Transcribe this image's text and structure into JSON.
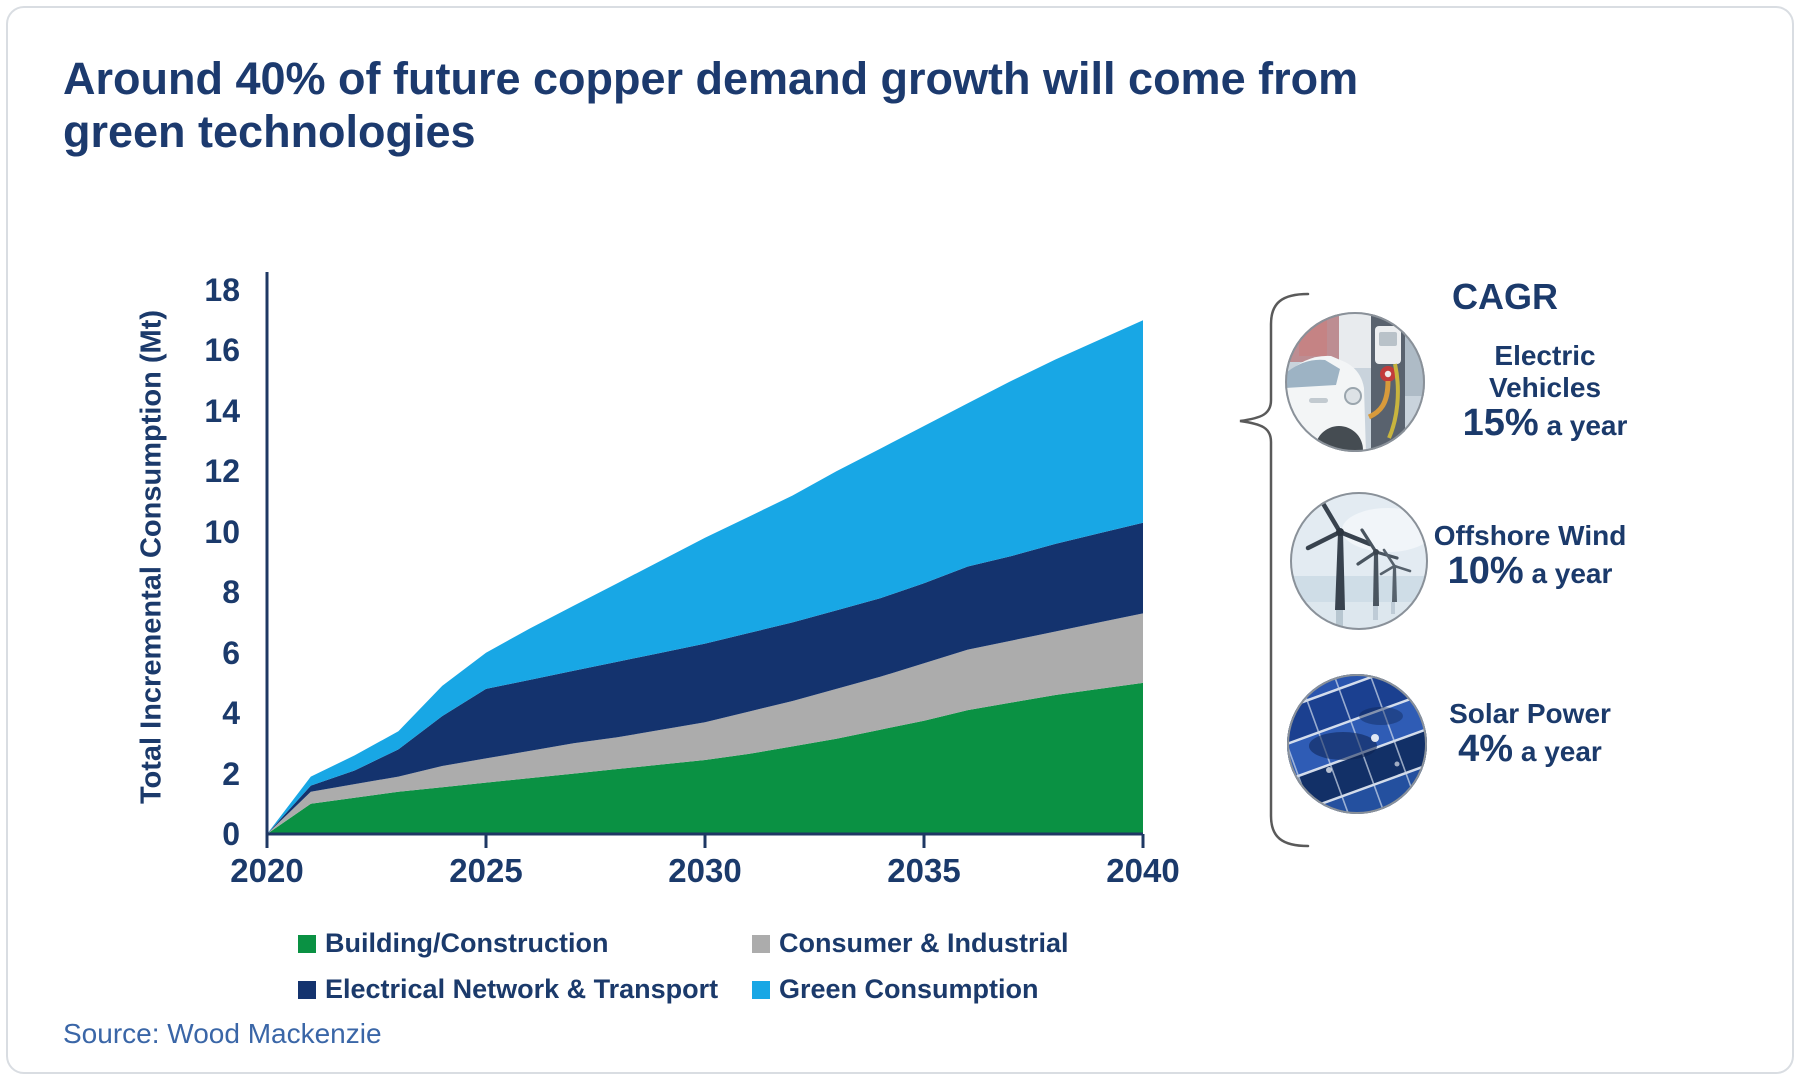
{
  "card": {
    "title": "Around 40% of future copper demand growth will come from green technologies",
    "source": "Source: Wood Mackenzie"
  },
  "chart_data": {
    "type": "area",
    "stacked": true,
    "title": "",
    "xlabel": "",
    "ylabel": "Total Incremental Consumption (Mt)",
    "ylim": [
      0,
      18
    ],
    "ytick_step": 2,
    "grid": false,
    "legend_position": "bottom",
    "axis_color": "#1F3864",
    "tick_label_color": "#1B3A6B",
    "x": [
      2020,
      2021,
      2022,
      2023,
      2024,
      2025,
      2026,
      2027,
      2028,
      2029,
      2030,
      2031,
      2032,
      2033,
      2034,
      2035,
      2036,
      2037,
      2038,
      2039,
      2040
    ],
    "x_ticks": [
      2020,
      2025,
      2030,
      2035,
      2040
    ],
    "series": [
      {
        "id": "building-construction",
        "name": "Building/Construction",
        "color": "#0A9143",
        "values": [
          0,
          1.0,
          1.2,
          1.4,
          1.55,
          1.7,
          1.85,
          2.0,
          2.15,
          2.3,
          2.45,
          2.65,
          2.9,
          3.15,
          3.45,
          3.75,
          4.1,
          4.35,
          4.6,
          4.8,
          5.0
        ]
      },
      {
        "id": "consumer-industrial",
        "name": "Consumer & Industrial",
        "color": "#ACACAC",
        "values": [
          0,
          0.4,
          0.45,
          0.5,
          0.7,
          0.8,
          0.9,
          1.0,
          1.05,
          1.15,
          1.25,
          1.4,
          1.5,
          1.65,
          1.75,
          1.9,
          2.0,
          2.05,
          2.1,
          2.2,
          2.3
        ]
      },
      {
        "id": "electrical-network-transport",
        "name": "Electrical Network & Transport",
        "color": "#14336E",
        "values": [
          0,
          0.2,
          0.45,
          0.9,
          1.65,
          2.3,
          2.35,
          2.4,
          2.5,
          2.55,
          2.6,
          2.6,
          2.6,
          2.6,
          2.6,
          2.65,
          2.75,
          2.8,
          2.9,
          2.95,
          3.0
        ]
      },
      {
        "id": "green-consumption",
        "name": "Green Consumption",
        "color": "#18A7E5",
        "values": [
          0,
          0.3,
          0.5,
          0.6,
          1.0,
          1.2,
          1.7,
          2.15,
          2.6,
          3.05,
          3.5,
          3.85,
          4.2,
          4.6,
          4.95,
          5.2,
          5.4,
          5.8,
          6.1,
          6.4,
          6.7
        ]
      }
    ]
  },
  "cagr": {
    "header": "CAGR",
    "items": [
      {
        "icon": "electric-vehicle",
        "line1": "Electric",
        "line2": "Vehicles",
        "rate": "15%",
        "rate_suffix": "a year"
      },
      {
        "icon": "offshore-wind",
        "line1": "Offshore Wind",
        "rate": "10%",
        "rate_suffix": "a year"
      },
      {
        "icon": "solar-power",
        "line1": "Solar Power",
        "rate": "4%",
        "rate_suffix": "a year"
      }
    ]
  },
  "theme": {
    "title_color": "#1C3A6E",
    "text_color": "#1B3A6B",
    "source_color": "#3A66A7"
  }
}
